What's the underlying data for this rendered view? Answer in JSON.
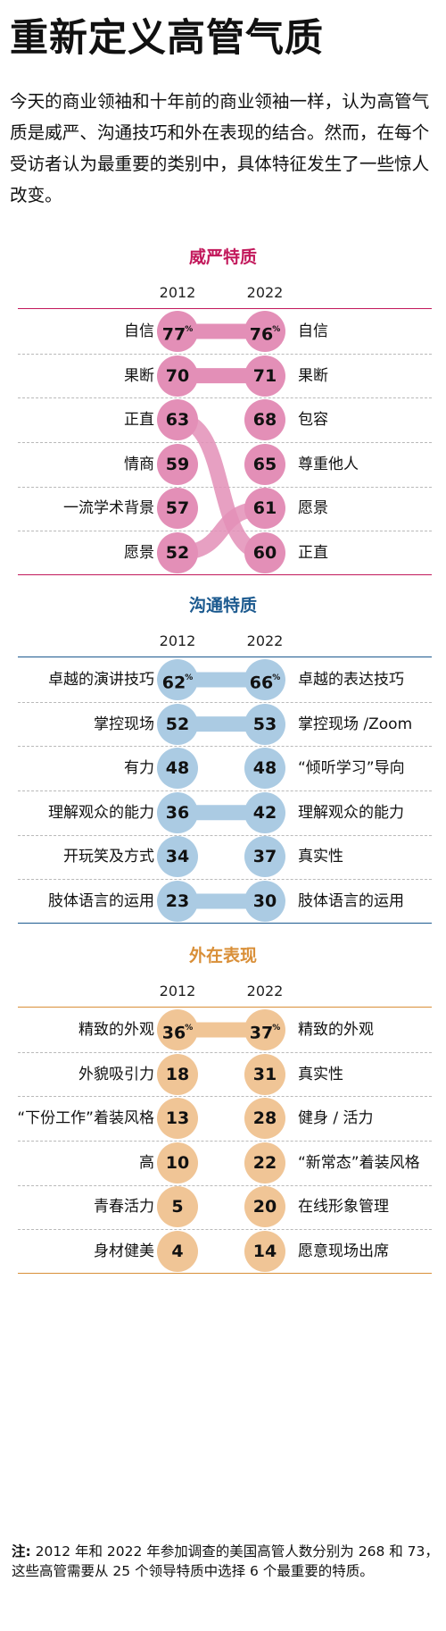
{
  "title": "重新定义高管气质",
  "intro": "今天的商业领袖和十年前的商业领袖一样，认为高管气质是威严、沟通技巧和外在表现的结合。然而，在每个受访者认为最重要的类别中，具体特征发生了一些惊人改变。",
  "note": {
    "label": "注:",
    "text": " 2012 年和 2022 年参加调查的美国高管人数分别为 268 和 73，这些高管需要从 25 个领导特质中选择 6 个最重要的特质。"
  },
  "colors": {
    "gravitas": {
      "accent": "#c2185b",
      "fill": "#e38fb7",
      "connector": "#e38fb7"
    },
    "communication": {
      "accent": "#1c5a8f",
      "fill": "#abcbe3",
      "connector": "#abcbe3"
    },
    "appearance": {
      "accent": "#d98f38",
      "fill": "#f0c596",
      "connector": "#f0c596"
    }
  },
  "chart_data": [
    {
      "type": "slope",
      "title": "威严特质",
      "years": [
        "2012",
        "2022"
      ],
      "left": [
        {
          "label": "自信",
          "value": 77,
          "pct": true
        },
        {
          "label": "果断",
          "value": 70
        },
        {
          "label": "正直",
          "value": 63
        },
        {
          "label": "情商",
          "value": 59
        },
        {
          "label": "一流学术背景",
          "value": 57
        },
        {
          "label": "愿景",
          "value": 52
        }
      ],
      "right": [
        {
          "label": "自信",
          "value": 76,
          "pct": true
        },
        {
          "label": "果断",
          "value": 71
        },
        {
          "label": "包容",
          "value": 68
        },
        {
          "label": "尊重他人",
          "value": 65
        },
        {
          "label": "愿景",
          "value": 61
        },
        {
          "label": "正直",
          "value": 60
        }
      ],
      "links": [
        [
          0,
          0
        ],
        [
          1,
          1
        ],
        [
          2,
          5
        ],
        [
          5,
          4
        ]
      ]
    },
    {
      "type": "slope",
      "title": "沟通特质",
      "years": [
        "2012",
        "2022"
      ],
      "left": [
        {
          "label": "卓越的演讲技巧",
          "value": 62,
          "pct": true
        },
        {
          "label": "掌控现场",
          "value": 52
        },
        {
          "label": "有力",
          "value": 48
        },
        {
          "label": "理解观众的能力",
          "value": 36
        },
        {
          "label": "开玩笑及方式",
          "value": 34
        },
        {
          "label": "肢体语言的运用",
          "value": 23
        }
      ],
      "right": [
        {
          "label": "卓越的表达技巧",
          "value": 66,
          "pct": true
        },
        {
          "label": "掌控现场 /Zoom",
          "value": 53
        },
        {
          "label": "“倾听学习”导向",
          "value": 48
        },
        {
          "label": "理解观众的能力",
          "value": 42
        },
        {
          "label": "真实性",
          "value": 37
        },
        {
          "label": "肢体语言的运用",
          "value": 30
        }
      ],
      "links": [
        [
          0,
          0
        ],
        [
          1,
          1
        ],
        [
          3,
          3
        ],
        [
          5,
          5
        ]
      ]
    },
    {
      "type": "slope",
      "title": "外在表现",
      "years": [
        "2012",
        "2022"
      ],
      "left": [
        {
          "label": "精致的外观",
          "value": 36,
          "pct": true
        },
        {
          "label": "外貌吸引力",
          "value": 18
        },
        {
          "label": "“下份工作”着装风格",
          "value": 13
        },
        {
          "label": "高",
          "value": 10
        },
        {
          "label": "青春活力",
          "value": 5
        },
        {
          "label": "身材健美",
          "value": 4
        }
      ],
      "right": [
        {
          "label": "精致的外观",
          "value": 37,
          "pct": true
        },
        {
          "label": "真实性",
          "value": 31
        },
        {
          "label": "健身 / 活力",
          "value": 28
        },
        {
          "label": "“新常态”着装风格",
          "value": 22
        },
        {
          "label": "在线形象管理",
          "value": 20
        },
        {
          "label": "愿意现场出席",
          "value": 14
        }
      ],
      "links": [
        [
          0,
          0
        ]
      ]
    }
  ]
}
